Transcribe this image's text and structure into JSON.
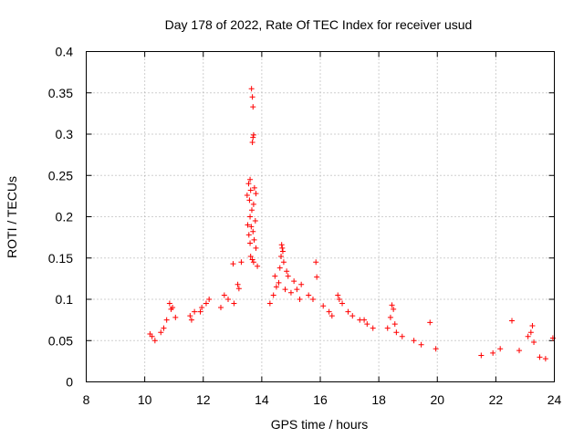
{
  "chart_data": {
    "type": "scatter",
    "title": "Day 178 of 2022, Rate Of TEC Index for receiver usud",
    "xlabel": "GPS time / hours",
    "ylabel": "ROTI / TECUs",
    "xlim": [
      8,
      24
    ],
    "ylim": [
      0,
      0.4
    ],
    "xticks": [
      "8",
      "10",
      "12",
      "14",
      "16",
      "18",
      "20",
      "22",
      "24"
    ],
    "yticks": [
      "0",
      "0.05",
      "0.1",
      "0.15",
      "0.2",
      "0.25",
      "0.3",
      "0.35",
      "0.4"
    ],
    "grid": true,
    "marker": "+",
    "color": "#ff0000",
    "series": [
      {
        "points": [
          [
            13.65,
            0.355
          ],
          [
            13.68,
            0.345
          ],
          [
            13.7,
            0.333
          ],
          [
            13.72,
            0.299
          ],
          [
            13.7,
            0.296
          ],
          [
            13.68,
            0.29
          ],
          [
            13.6,
            0.245
          ],
          [
            13.55,
            0.24
          ],
          [
            13.75,
            0.235
          ],
          [
            13.62,
            0.232
          ],
          [
            13.8,
            0.228
          ],
          [
            13.5,
            0.226
          ],
          [
            13.58,
            0.22
          ],
          [
            13.72,
            0.215
          ],
          [
            13.66,
            0.208
          ],
          [
            13.6,
            0.2
          ],
          [
            13.78,
            0.195
          ],
          [
            13.52,
            0.19
          ],
          [
            13.64,
            0.188
          ],
          [
            13.7,
            0.182
          ],
          [
            13.56,
            0.178
          ],
          [
            13.74,
            0.172
          ],
          [
            13.6,
            0.168
          ],
          [
            13.8,
            0.162
          ],
          [
            13.62,
            0.152
          ],
          [
            13.68,
            0.148
          ],
          [
            13.72,
            0.145
          ],
          [
            13.3,
            0.145
          ],
          [
            13.02,
            0.143
          ],
          [
            13.85,
            0.14
          ],
          [
            14.68,
            0.166
          ],
          [
            14.7,
            0.162
          ],
          [
            14.72,
            0.158
          ],
          [
            14.66,
            0.152
          ],
          [
            14.75,
            0.145
          ],
          [
            14.62,
            0.138
          ],
          [
            14.85,
            0.134
          ],
          [
            14.9,
            0.128
          ],
          [
            14.45,
            0.128
          ],
          [
            15.85,
            0.145
          ],
          [
            15.88,
            0.127
          ],
          [
            14.58,
            0.12
          ],
          [
            14.5,
            0.115
          ],
          [
            14.8,
            0.112
          ],
          [
            15.0,
            0.108
          ],
          [
            15.2,
            0.112
          ],
          [
            15.35,
            0.118
          ],
          [
            15.1,
            0.122
          ],
          [
            15.6,
            0.105
          ],
          [
            15.75,
            0.1
          ],
          [
            15.3,
            0.1
          ],
          [
            14.4,
            0.105
          ],
          [
            14.28,
            0.095
          ],
          [
            13.18,
            0.118
          ],
          [
            13.22,
            0.113
          ],
          [
            12.85,
            0.1
          ],
          [
            12.72,
            0.105
          ],
          [
            12.6,
            0.09
          ],
          [
            13.05,
            0.095
          ],
          [
            12.2,
            0.1
          ],
          [
            12.1,
            0.095
          ],
          [
            11.95,
            0.09
          ],
          [
            11.55,
            0.08
          ],
          [
            11.6,
            0.075
          ],
          [
            11.7,
            0.085
          ],
          [
            11.9,
            0.085
          ],
          [
            10.85,
            0.095
          ],
          [
            10.95,
            0.09
          ],
          [
            10.9,
            0.088
          ],
          [
            11.05,
            0.078
          ],
          [
            10.75,
            0.075
          ],
          [
            10.25,
            0.055
          ],
          [
            10.18,
            0.058
          ],
          [
            10.35,
            0.05
          ],
          [
            10.55,
            0.06
          ],
          [
            10.65,
            0.065
          ],
          [
            16.6,
            0.105
          ],
          [
            16.65,
            0.1
          ],
          [
            16.75,
            0.095
          ],
          [
            16.95,
            0.085
          ],
          [
            17.1,
            0.08
          ],
          [
            17.35,
            0.075
          ],
          [
            17.6,
            0.07
          ],
          [
            17.5,
            0.075
          ],
          [
            17.8,
            0.065
          ],
          [
            16.1,
            0.092
          ],
          [
            16.3,
            0.085
          ],
          [
            16.4,
            0.08
          ],
          [
            18.45,
            0.093
          ],
          [
            18.5,
            0.088
          ],
          [
            18.4,
            0.078
          ],
          [
            18.55,
            0.07
          ],
          [
            18.8,
            0.055
          ],
          [
            19.2,
            0.05
          ],
          [
            19.45,
            0.045
          ],
          [
            19.75,
            0.072
          ],
          [
            19.95,
            0.04
          ],
          [
            18.3,
            0.065
          ],
          [
            18.6,
            0.06
          ],
          [
            22.55,
            0.074
          ],
          [
            23.25,
            0.068
          ],
          [
            23.2,
            0.06
          ],
          [
            23.1,
            0.055
          ],
          [
            23.3,
            0.048
          ],
          [
            22.15,
            0.04
          ],
          [
            23.95,
            0.053
          ],
          [
            21.9,
            0.035
          ],
          [
            22.8,
            0.038
          ],
          [
            23.5,
            0.03
          ],
          [
            23.7,
            0.028
          ],
          [
            21.5,
            0.032
          ]
        ]
      }
    ]
  }
}
